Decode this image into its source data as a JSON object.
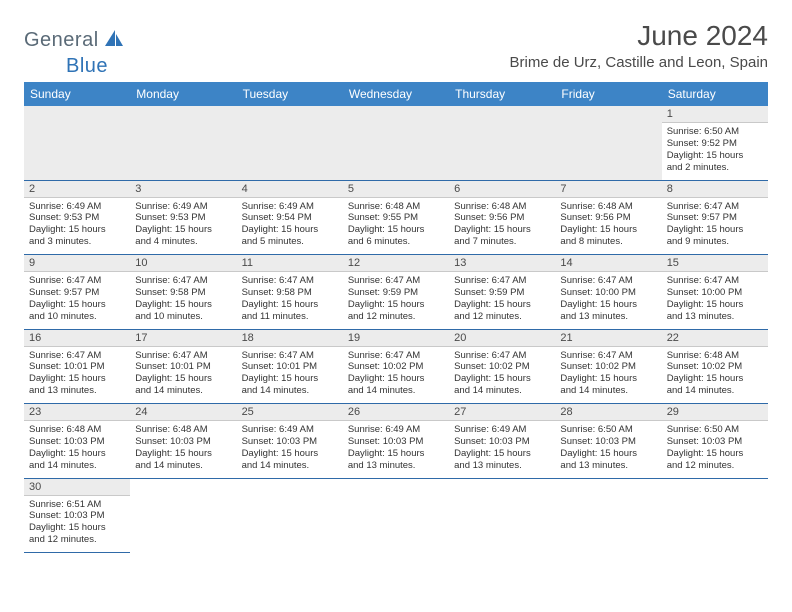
{
  "brand": {
    "part1": "General",
    "part2": "Blue"
  },
  "title": "June 2024",
  "location": "Brime de Urz, Castille and Leon, Spain",
  "colors": {
    "header_bg": "#3d84c6",
    "header_text": "#ffffff",
    "daynum_bg": "#ececec",
    "row_divider": "#2f6aa8",
    "brand_gray": "#5a6a77",
    "brand_blue": "#2f73b6"
  },
  "weekdays": [
    "Sunday",
    "Monday",
    "Tuesday",
    "Wednesday",
    "Thursday",
    "Friday",
    "Saturday"
  ],
  "weeks": [
    [
      null,
      null,
      null,
      null,
      null,
      null,
      {
        "n": "1",
        "sr": "Sunrise: 6:50 AM",
        "ss": "Sunset: 9:52 PM",
        "dl1": "Daylight: 15 hours",
        "dl2": "and 2 minutes."
      }
    ],
    [
      {
        "n": "2",
        "sr": "Sunrise: 6:49 AM",
        "ss": "Sunset: 9:53 PM",
        "dl1": "Daylight: 15 hours",
        "dl2": "and 3 minutes."
      },
      {
        "n": "3",
        "sr": "Sunrise: 6:49 AM",
        "ss": "Sunset: 9:53 PM",
        "dl1": "Daylight: 15 hours",
        "dl2": "and 4 minutes."
      },
      {
        "n": "4",
        "sr": "Sunrise: 6:49 AM",
        "ss": "Sunset: 9:54 PM",
        "dl1": "Daylight: 15 hours",
        "dl2": "and 5 minutes."
      },
      {
        "n": "5",
        "sr": "Sunrise: 6:48 AM",
        "ss": "Sunset: 9:55 PM",
        "dl1": "Daylight: 15 hours",
        "dl2": "and 6 minutes."
      },
      {
        "n": "6",
        "sr": "Sunrise: 6:48 AM",
        "ss": "Sunset: 9:56 PM",
        "dl1": "Daylight: 15 hours",
        "dl2": "and 7 minutes."
      },
      {
        "n": "7",
        "sr": "Sunrise: 6:48 AM",
        "ss": "Sunset: 9:56 PM",
        "dl1": "Daylight: 15 hours",
        "dl2": "and 8 minutes."
      },
      {
        "n": "8",
        "sr": "Sunrise: 6:47 AM",
        "ss": "Sunset: 9:57 PM",
        "dl1": "Daylight: 15 hours",
        "dl2": "and 9 minutes."
      }
    ],
    [
      {
        "n": "9",
        "sr": "Sunrise: 6:47 AM",
        "ss": "Sunset: 9:57 PM",
        "dl1": "Daylight: 15 hours",
        "dl2": "and 10 minutes."
      },
      {
        "n": "10",
        "sr": "Sunrise: 6:47 AM",
        "ss": "Sunset: 9:58 PM",
        "dl1": "Daylight: 15 hours",
        "dl2": "and 10 minutes."
      },
      {
        "n": "11",
        "sr": "Sunrise: 6:47 AM",
        "ss": "Sunset: 9:58 PM",
        "dl1": "Daylight: 15 hours",
        "dl2": "and 11 minutes."
      },
      {
        "n": "12",
        "sr": "Sunrise: 6:47 AM",
        "ss": "Sunset: 9:59 PM",
        "dl1": "Daylight: 15 hours",
        "dl2": "and 12 minutes."
      },
      {
        "n": "13",
        "sr": "Sunrise: 6:47 AM",
        "ss": "Sunset: 9:59 PM",
        "dl1": "Daylight: 15 hours",
        "dl2": "and 12 minutes."
      },
      {
        "n": "14",
        "sr": "Sunrise: 6:47 AM",
        "ss": "Sunset: 10:00 PM",
        "dl1": "Daylight: 15 hours",
        "dl2": "and 13 minutes."
      },
      {
        "n": "15",
        "sr": "Sunrise: 6:47 AM",
        "ss": "Sunset: 10:00 PM",
        "dl1": "Daylight: 15 hours",
        "dl2": "and 13 minutes."
      }
    ],
    [
      {
        "n": "16",
        "sr": "Sunrise: 6:47 AM",
        "ss": "Sunset: 10:01 PM",
        "dl1": "Daylight: 15 hours",
        "dl2": "and 13 minutes."
      },
      {
        "n": "17",
        "sr": "Sunrise: 6:47 AM",
        "ss": "Sunset: 10:01 PM",
        "dl1": "Daylight: 15 hours",
        "dl2": "and 14 minutes."
      },
      {
        "n": "18",
        "sr": "Sunrise: 6:47 AM",
        "ss": "Sunset: 10:01 PM",
        "dl1": "Daylight: 15 hours",
        "dl2": "and 14 minutes."
      },
      {
        "n": "19",
        "sr": "Sunrise: 6:47 AM",
        "ss": "Sunset: 10:02 PM",
        "dl1": "Daylight: 15 hours",
        "dl2": "and 14 minutes."
      },
      {
        "n": "20",
        "sr": "Sunrise: 6:47 AM",
        "ss": "Sunset: 10:02 PM",
        "dl1": "Daylight: 15 hours",
        "dl2": "and 14 minutes."
      },
      {
        "n": "21",
        "sr": "Sunrise: 6:47 AM",
        "ss": "Sunset: 10:02 PM",
        "dl1": "Daylight: 15 hours",
        "dl2": "and 14 minutes."
      },
      {
        "n": "22",
        "sr": "Sunrise: 6:48 AM",
        "ss": "Sunset: 10:02 PM",
        "dl1": "Daylight: 15 hours",
        "dl2": "and 14 minutes."
      }
    ],
    [
      {
        "n": "23",
        "sr": "Sunrise: 6:48 AM",
        "ss": "Sunset: 10:03 PM",
        "dl1": "Daylight: 15 hours",
        "dl2": "and 14 minutes."
      },
      {
        "n": "24",
        "sr": "Sunrise: 6:48 AM",
        "ss": "Sunset: 10:03 PM",
        "dl1": "Daylight: 15 hours",
        "dl2": "and 14 minutes."
      },
      {
        "n": "25",
        "sr": "Sunrise: 6:49 AM",
        "ss": "Sunset: 10:03 PM",
        "dl1": "Daylight: 15 hours",
        "dl2": "and 14 minutes."
      },
      {
        "n": "26",
        "sr": "Sunrise: 6:49 AM",
        "ss": "Sunset: 10:03 PM",
        "dl1": "Daylight: 15 hours",
        "dl2": "and 13 minutes."
      },
      {
        "n": "27",
        "sr": "Sunrise: 6:49 AM",
        "ss": "Sunset: 10:03 PM",
        "dl1": "Daylight: 15 hours",
        "dl2": "and 13 minutes."
      },
      {
        "n": "28",
        "sr": "Sunrise: 6:50 AM",
        "ss": "Sunset: 10:03 PM",
        "dl1": "Daylight: 15 hours",
        "dl2": "and 13 minutes."
      },
      {
        "n": "29",
        "sr": "Sunrise: 6:50 AM",
        "ss": "Sunset: 10:03 PM",
        "dl1": "Daylight: 15 hours",
        "dl2": "and 12 minutes."
      }
    ],
    [
      {
        "n": "30",
        "sr": "Sunrise: 6:51 AM",
        "ss": "Sunset: 10:03 PM",
        "dl1": "Daylight: 15 hours",
        "dl2": "and 12 minutes."
      },
      null,
      null,
      null,
      null,
      null,
      null
    ]
  ]
}
